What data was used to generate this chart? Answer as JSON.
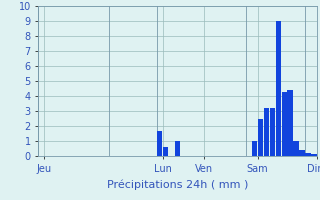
{
  "title": "Précipitations 24h ( mm )",
  "background_color": "#dff2f2",
  "bar_color": "#1144dd",
  "grid_color": "#99bbbb",
  "axis_label_color": "#3355bb",
  "tick_label_color": "#3355bb",
  "ylim": [
    0,
    10
  ],
  "yticks": [
    0,
    1,
    2,
    3,
    4,
    5,
    6,
    7,
    8,
    9,
    10
  ],
  "bar_values": [
    0,
    0,
    0,
    0,
    0,
    0,
    0,
    0,
    0,
    0,
    0,
    0,
    0,
    0,
    0,
    0,
    0,
    0,
    0,
    0,
    1.7,
    0.6,
    0,
    1.0,
    0,
    0,
    0,
    0,
    0,
    0,
    0,
    0,
    0,
    0,
    0,
    0,
    1.0,
    2.5,
    3.2,
    3.2,
    9.0,
    4.3,
    4.4,
    1.0,
    0.4,
    0.2,
    0.15
  ],
  "day_labels": [
    "Jeu",
    "Lun",
    "Ven",
    "Sam",
    "Dim"
  ],
  "day_tick_positions": [
    0.5,
    20.5,
    27.5,
    36.5,
    46.5
  ],
  "day_vline_positions": [
    0,
    12,
    20,
    35,
    45
  ],
  "xlabel_fontsize": 8,
  "ylabel_fontsize": 7,
  "tick_fontsize": 7
}
